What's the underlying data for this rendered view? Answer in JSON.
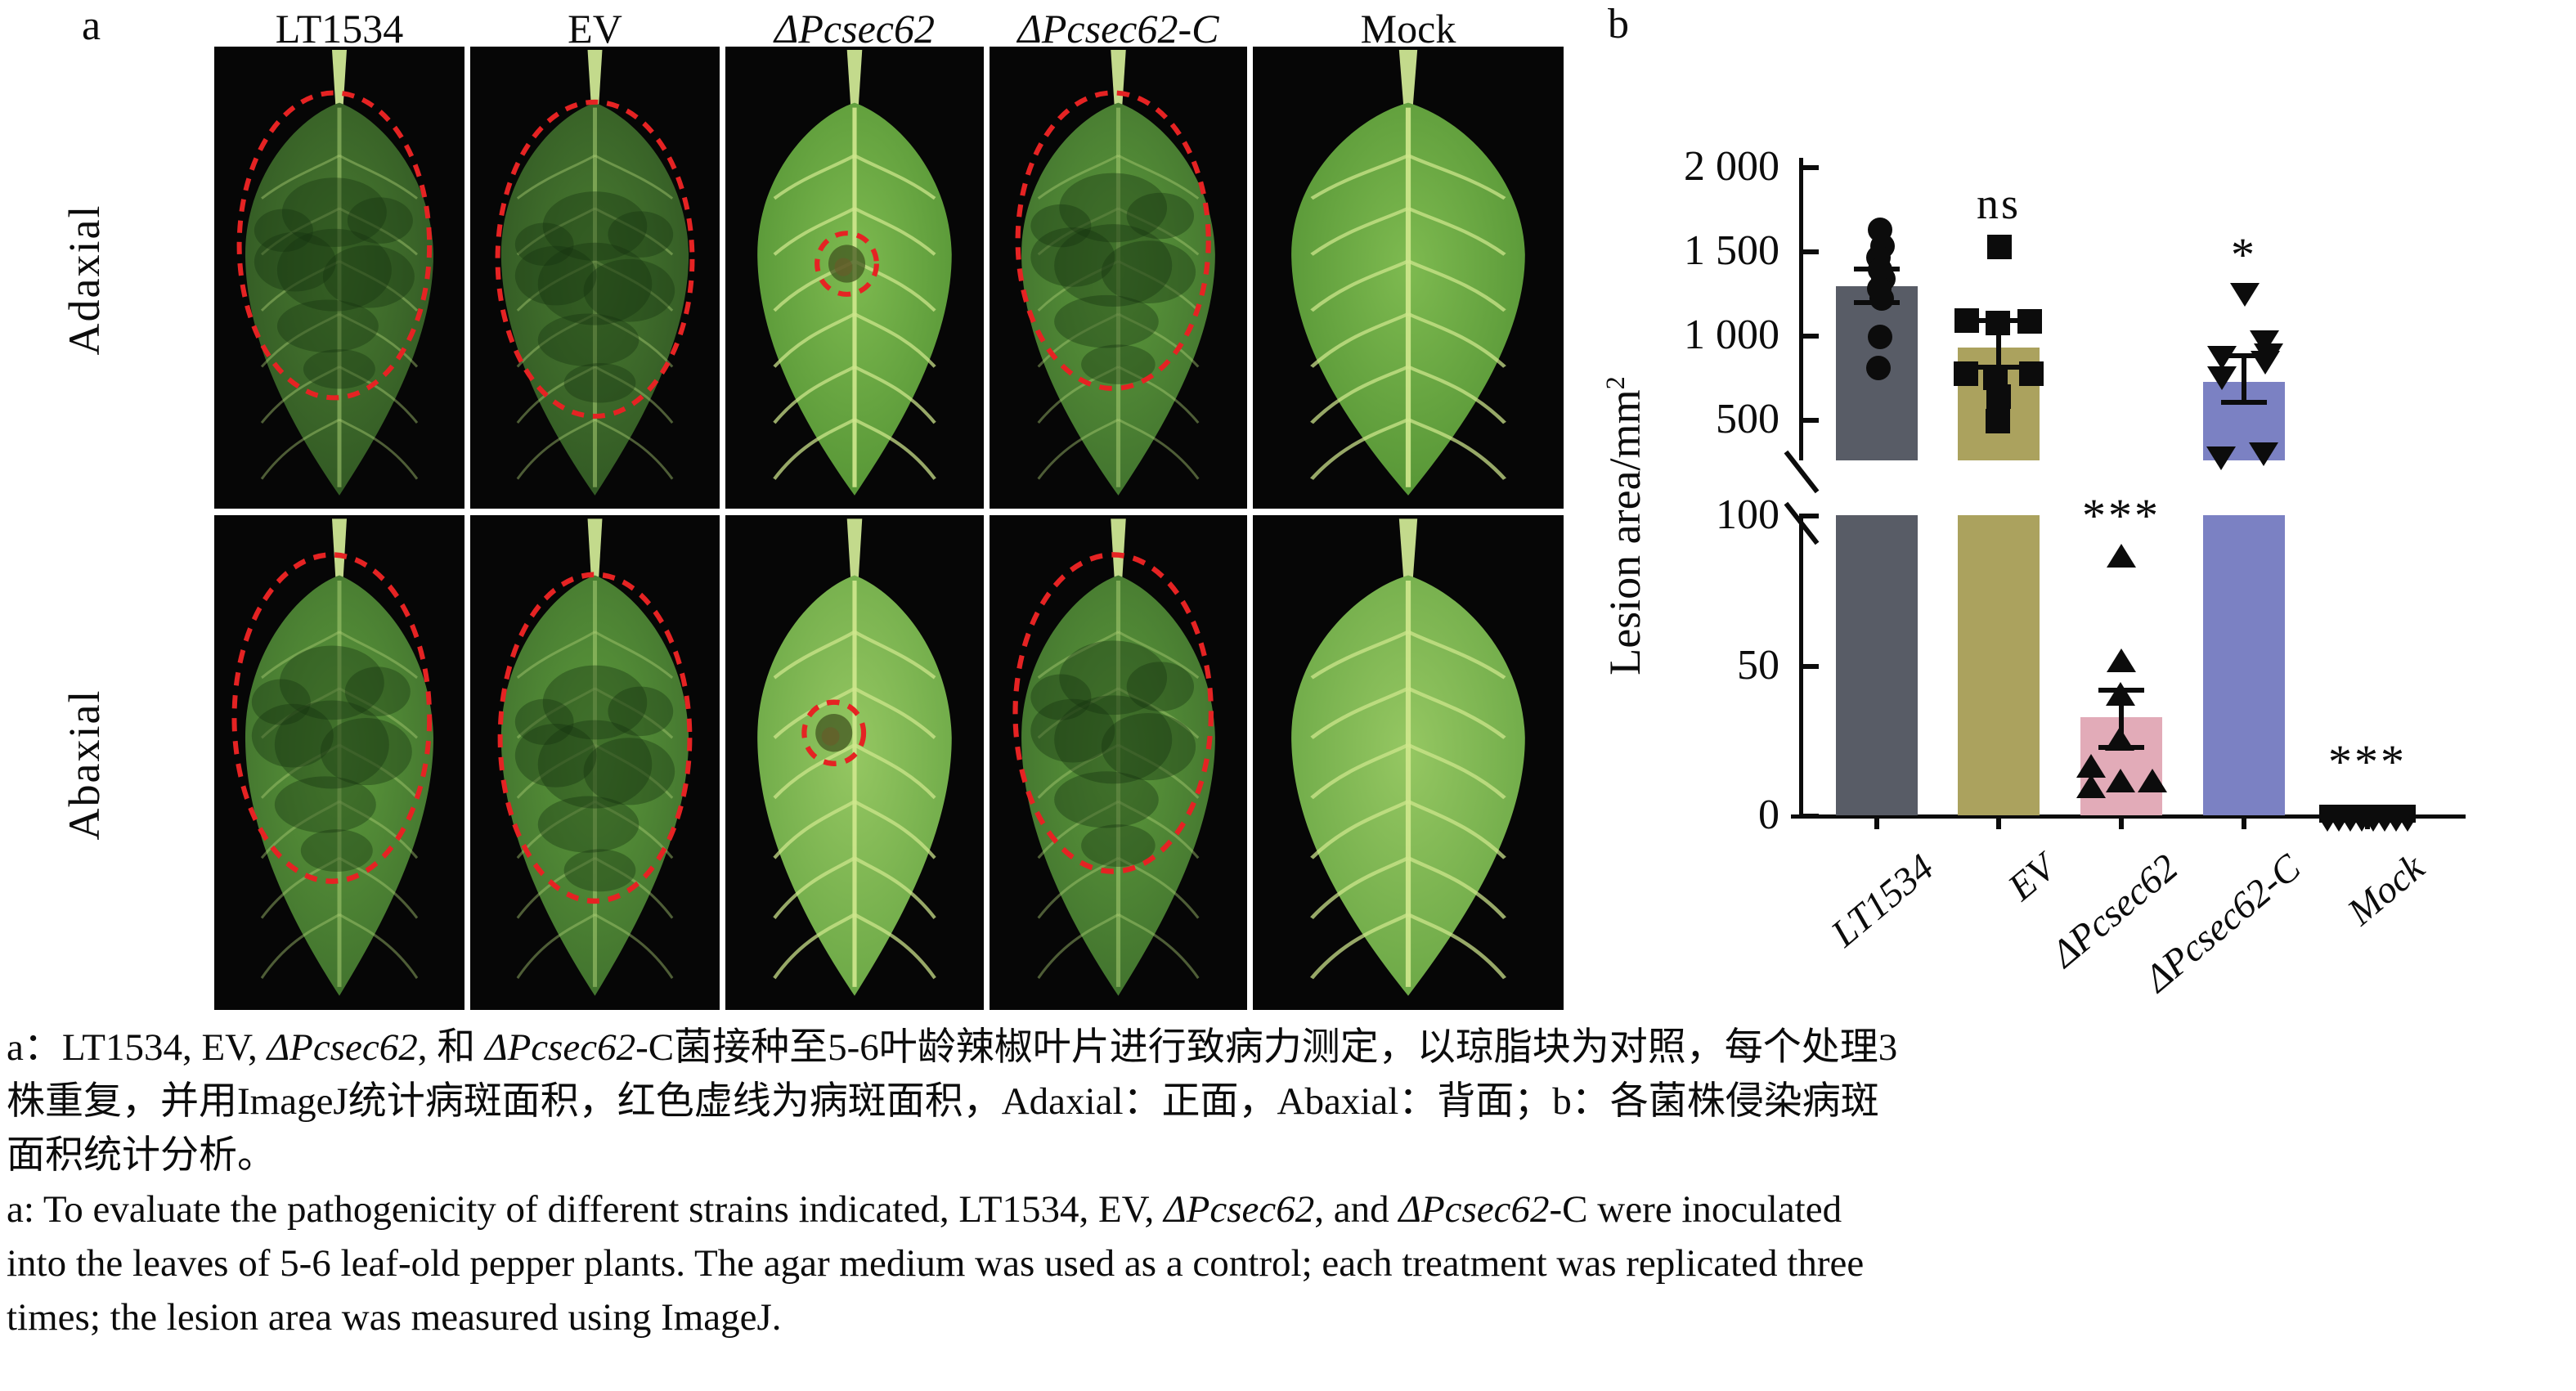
{
  "panel_a": {
    "label": "a",
    "columns": [
      "LT1534",
      "EV",
      "ΔPcsec62",
      "ΔPcsec62-C",
      "Mock"
    ],
    "row_labels": [
      "Adaxial",
      "Abaxial"
    ],
    "grid": [
      [
        {
          "strain": "LT1534",
          "shade": "dark",
          "mottle": true,
          "lesion": "large",
          "circle": [
            0.48,
            0.43,
            0.38,
            0.33
          ]
        },
        {
          "strain": "EV",
          "shade": "dark",
          "mottle": true,
          "lesion": "large",
          "circle": [
            0.5,
            0.46,
            0.39,
            0.34
          ]
        },
        {
          "strain": "ΔPcsec62",
          "shade": "bright",
          "mottle": false,
          "lesion": "small",
          "circle": [
            0.47,
            0.47,
            0.115,
            0.066
          ]
        },
        {
          "strain": "ΔPcsec62-C",
          "shade": "mid",
          "mottle": true,
          "lesion": "large",
          "circle": [
            0.48,
            0.42,
            0.37,
            0.32
          ]
        },
        {
          "strain": "Mock",
          "shade": "bright",
          "mottle": false,
          "lesion": "none",
          "circle": null
        }
      ],
      [
        {
          "strain": "LT1534",
          "shade": "mid",
          "mottle": true,
          "lesion": "large",
          "circle": [
            0.47,
            0.41,
            0.39,
            0.33
          ]
        },
        {
          "strain": "EV",
          "shade": "mid",
          "mottle": true,
          "lesion": "large",
          "circle": [
            0.5,
            0.45,
            0.38,
            0.33
          ]
        },
        {
          "strain": "ΔPcsec62",
          "shade": "pale",
          "mottle": false,
          "lesion": "small",
          "circle": [
            0.42,
            0.44,
            0.115,
            0.062
          ]
        },
        {
          "strain": "ΔPcsec62-C",
          "shade": "mid",
          "mottle": true,
          "lesion": "large",
          "circle": [
            0.48,
            0.4,
            0.38,
            0.32
          ]
        },
        {
          "strain": "Mock",
          "shade": "pale",
          "mottle": false,
          "lesion": "none",
          "circle": null
        }
      ]
    ]
  },
  "panel_b": {
    "label": "b",
    "ylabel": "Lesion area/mm",
    "ylabel_sup": "2"
  },
  "chart_data": {
    "type": "bar",
    "title": "",
    "ylabel": "Lesion area/mm²",
    "broken_axis": true,
    "upper_ticks": [
      {
        "label": "2 000",
        "value": 2000
      },
      {
        "label": "1 500",
        "value": 1500
      },
      {
        "label": "1 000",
        "value": 1000
      },
      {
        "label": "500",
        "value": 500
      }
    ],
    "lower_ticks": [
      {
        "label": "100",
        "value": 100
      },
      {
        "label": "50",
        "value": 50
      },
      {
        "label": "0",
        "value": 0
      }
    ],
    "upper_range": [
      250,
      2000
    ],
    "lower_range": [
      0,
      105
    ],
    "categories": [
      "LT1534",
      "EV",
      "ΔPcsec62",
      "ΔPcsec62-C",
      "Mock"
    ],
    "groups": [
      {
        "name": "LT1534",
        "marker": "circle",
        "color": "#585c66",
        "mean": 1295,
        "err_low": 1200,
        "err_high": 1400,
        "sig": "",
        "sig_value": 0,
        "sig_segment": "upper",
        "points": [
          [
            1630,
            4
          ],
          [
            1532,
            7
          ],
          [
            1468,
            2
          ],
          [
            1395,
            4
          ],
          [
            1338,
            8
          ],
          [
            1282,
            3
          ],
          [
            1222,
            6
          ],
          [
            995,
            4
          ],
          [
            812,
            2
          ]
        ]
      },
      {
        "name": "EV",
        "marker": "square",
        "color": "#aba25e",
        "mean": 930,
        "err_low": 815,
        "err_high": 1090,
        "sig": "ns",
        "sig_value": 1790,
        "sig_segment": "upper",
        "points": [
          [
            1530,
            1
          ],
          [
            1090,
            -39
          ],
          [
            1078,
            -1
          ],
          [
            1088,
            38
          ],
          [
            778,
            -40
          ],
          [
            752,
            -4
          ],
          [
            778,
            40
          ],
          [
            640,
            0
          ],
          [
            495,
            -1
          ]
        ]
      },
      {
        "name": "ΔPcsec62",
        "marker": "triangle-up",
        "color": "#e2abb8",
        "mean": 33,
        "err_low": 23,
        "err_high": 42,
        "sig": "***",
        "sig_value": 101,
        "sig_segment": "lower",
        "points": [
          [
            87,
            0
          ],
          [
            52,
            0
          ],
          [
            41,
            -1
          ],
          [
            26,
            -2
          ],
          [
            17,
            -37
          ],
          [
            10,
            -37
          ],
          [
            12,
            -1
          ],
          [
            12,
            38
          ]
        ]
      },
      {
        "name": "ΔPcsec62-C",
        "marker": "triangle-down",
        "color": "#7b81c3",
        "mean": 730,
        "err_low": 605,
        "err_high": 885,
        "sig": "*",
        "sig_value": 1500,
        "sig_segment": "upper",
        "points": [
          [
            1248,
            1
          ],
          [
            966,
            25
          ],
          [
            890,
            30
          ],
          [
            874,
            -27
          ],
          [
            845,
            26
          ],
          [
            753,
            -27
          ],
          [
            301,
            24
          ],
          [
            277,
            -28
          ]
        ]
      },
      {
        "name": "Mock",
        "marker": "cluster",
        "color": "#0d0d0d",
        "mean": 0,
        "err_low": null,
        "err_high": null,
        "sig": "***",
        "sig_value": 19,
        "sig_segment": "lower",
        "points": [
          [
            2,
            -45
          ],
          [
            3,
            -30
          ],
          [
            2,
            -15
          ],
          [
            4,
            0
          ],
          [
            2,
            15
          ],
          [
            3,
            30
          ],
          [
            2,
            45
          ]
        ]
      }
    ]
  },
  "caption": {
    "lines": [
      [
        {
          "t": "a：LT1534, EV, "
        },
        {
          "t": "ΔPcsec62",
          "i": 1
        },
        {
          "t": ", 和 "
        },
        {
          "t": "ΔPcsec62",
          "i": 1
        },
        {
          "t": "-C菌接种至5-6叶龄辣椒叶片进行致病力测定，以琼脂块为对照，每个处理3"
        }
      ],
      [
        {
          "t": "株重复，并用ImageJ统计病斑面积，红色虚线为病斑面积，Adaxial：正面，Abaxial：背面；b：各菌株侵染病斑"
        }
      ],
      [
        {
          "t": "面积统计分析。"
        }
      ],
      [
        {
          "t": "a: To evaluate the pathogenicity of different strains indicated, LT1534, EV, "
        },
        {
          "t": "ΔPcsec62",
          "i": 1
        },
        {
          "t": ", and "
        },
        {
          "t": "ΔPcsec62",
          "i": 1
        },
        {
          "t": "-C were inoculated"
        }
      ],
      [
        {
          "t": "into the leaves of 5-6 leaf-old pepper plants. The agar medium was used as a control; each treatment was replicated three"
        }
      ],
      [
        {
          "t": "times; the lesion area was measured using ImageJ."
        }
      ]
    ]
  }
}
